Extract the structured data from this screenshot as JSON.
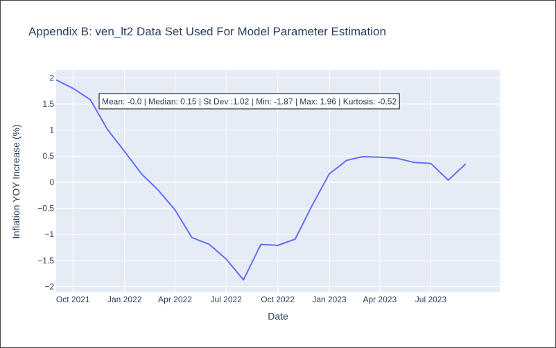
{
  "chart_data": {
    "type": "line",
    "title": "Appendix B: ven_lt2 Data Set Used For Model Parameter Estimation",
    "xlabel": "Date",
    "ylabel": "Inflation YOY Increase (%)",
    "xlim": [
      "2021-09-01",
      "2023-11-01"
    ],
    "ylim": [
      -2.1,
      2.15
    ],
    "x_tick_values": [
      "2021-10-01",
      "2022-01-01",
      "2022-04-01",
      "2022-07-01",
      "2022-10-01",
      "2023-01-01",
      "2023-04-01",
      "2023-07-01"
    ],
    "x_tick_labels": [
      "Oct 2021",
      "Jan 2022",
      "Apr 2022",
      "Jul 2022",
      "Oct 2022",
      "Jan 2023",
      "Apr 2023",
      "Jul 2023"
    ],
    "y_ticks": [
      2,
      1.5,
      1,
      0.5,
      0,
      -0.5,
      -1,
      -1.5,
      -2
    ],
    "y_tick_labels": [
      "2",
      "1.5",
      "1",
      "0.5",
      "0",
      "−0.5",
      "−1",
      "−1.5",
      "−2"
    ],
    "legend": "none",
    "grid": true,
    "series": [
      {
        "name": "ven_lt2",
        "color": "#636efa",
        "x": [
          "2021-09-01",
          "2021-10-01",
          "2021-11-01",
          "2021-12-01",
          "2022-01-01",
          "2022-02-01",
          "2022-03-01",
          "2022-04-01",
          "2022-05-01",
          "2022-06-01",
          "2022-07-01",
          "2022-08-01",
          "2022-09-01",
          "2022-10-01",
          "2022-11-01",
          "2022-12-01",
          "2023-01-01",
          "2023-02-01",
          "2023-03-01",
          "2023-04-01",
          "2023-05-01",
          "2023-06-01",
          "2023-07-01",
          "2023-08-01",
          "2023-09-01"
        ],
        "values": [
          1.96,
          1.8,
          1.58,
          1.02,
          0.59,
          0.15,
          -0.14,
          -0.53,
          -1.06,
          -1.19,
          -1.47,
          -1.87,
          -1.19,
          -1.21,
          -1.09,
          -0.45,
          0.16,
          0.42,
          0.49,
          0.48,
          0.46,
          0.38,
          0.36,
          0.04,
          0.35
        ]
      }
    ],
    "annotations": [
      {
        "text": "Mean: -0.0 | Median: 0.15 | St Dev :1.02 | Min: -1.87 | Max: 1.96 | Kurtosis: -0.52"
      }
    ]
  }
}
